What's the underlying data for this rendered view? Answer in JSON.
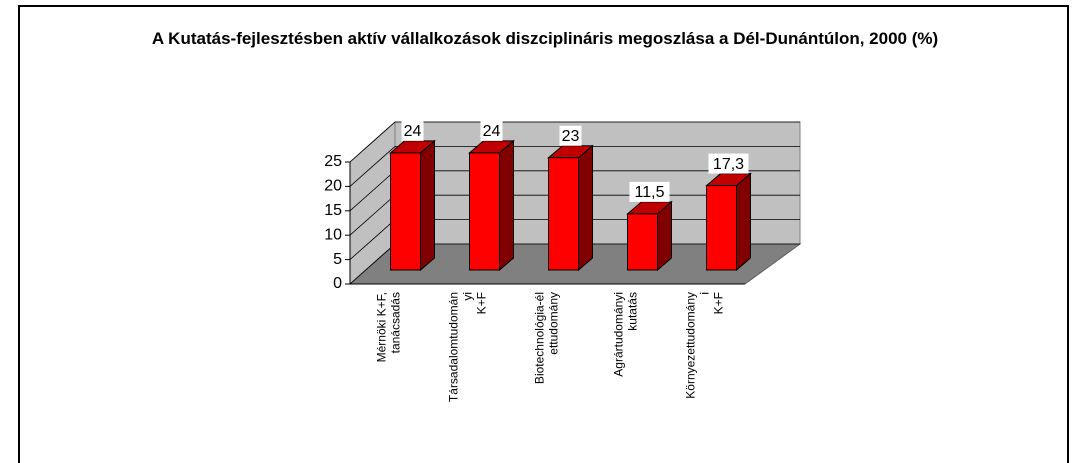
{
  "chart_data": {
    "type": "bar",
    "title": "A Kutatás-fejlesztésben aktív vállalkozások diszciplináris megoszlása a Dél-Dunántúlon, 2000 (%)",
    "categories": [
      "Mérnöki K+F, tanácsadás",
      "Társadalomtudományi K+F",
      "Biotechnológia-élettudomány",
      "Agrártudományi kutatás",
      "Környezettudományi K+F"
    ],
    "values": [
      24,
      24,
      23,
      11.5,
      17.3
    ],
    "value_labels": [
      "24",
      "24",
      "23",
      "11,5",
      "17,3"
    ],
    "color": "#ff0000",
    "ylim": [
      0,
      25
    ],
    "yticks": [
      0,
      5,
      10,
      15,
      20,
      25
    ],
    "grid": true
  }
}
